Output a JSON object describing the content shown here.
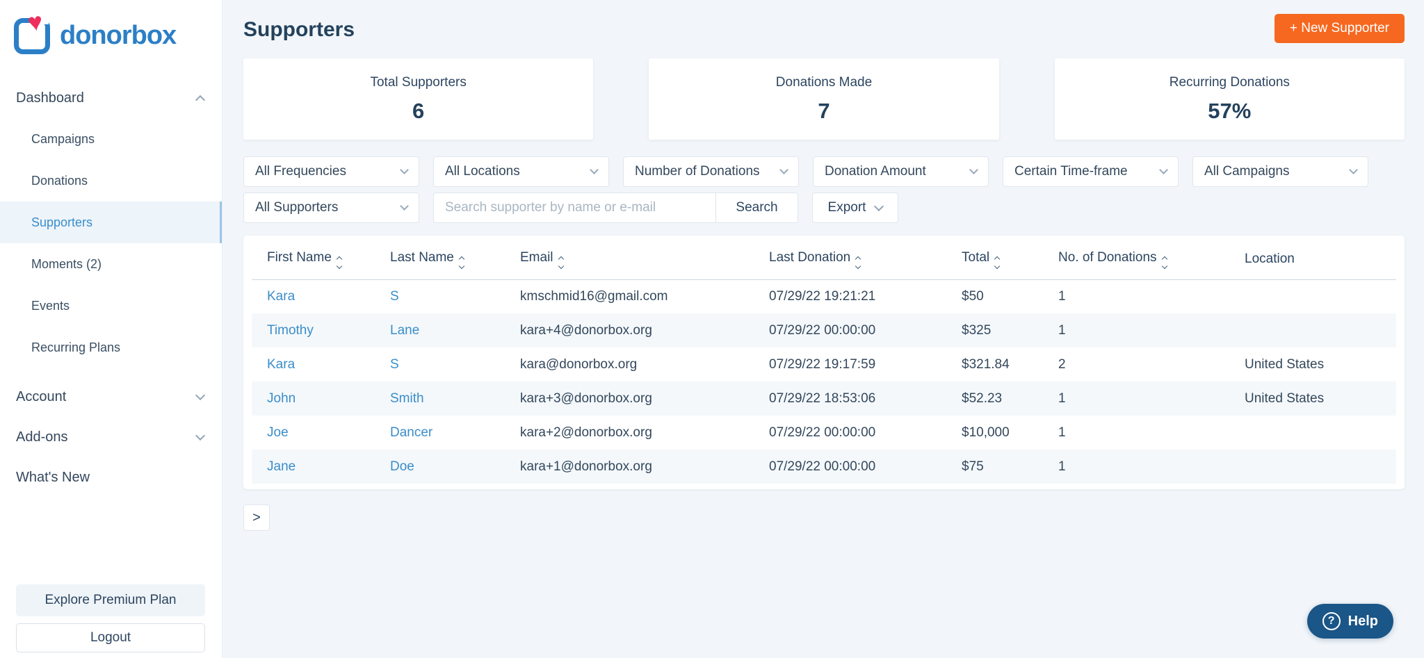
{
  "brand": {
    "name": "donorbox"
  },
  "sidebar": {
    "dashboard": "Dashboard",
    "items": [
      {
        "label": "Campaigns"
      },
      {
        "label": "Donations"
      },
      {
        "label": "Supporters"
      },
      {
        "label": "Moments (2)"
      },
      {
        "label": "Events"
      },
      {
        "label": "Recurring Plans"
      }
    ],
    "account": "Account",
    "addons": "Add-ons",
    "whats_new": "What's New",
    "premium_button": "Explore Premium Plan",
    "logout_button": "Logout"
  },
  "header": {
    "title": "Supporters",
    "new_supporter_button": "+ New Supporter"
  },
  "stats": [
    {
      "label": "Total Supporters",
      "value": "6"
    },
    {
      "label": "Donations Made",
      "value": "7"
    },
    {
      "label": "Recurring Donations",
      "value": "57%"
    }
  ],
  "filters": {
    "dropdowns": [
      {
        "label": "All Frequencies"
      },
      {
        "label": "All Locations"
      },
      {
        "label": "Number of Donations"
      },
      {
        "label": "Donation Amount"
      },
      {
        "label": "Certain Time-frame"
      },
      {
        "label": "All Campaigns"
      }
    ],
    "supporter_dropdown": "All Supporters",
    "search_placeholder": "Search supporter by name or e-mail",
    "search_value": "",
    "search_button": "Search",
    "export_button": "Export"
  },
  "table": {
    "columns": [
      {
        "label": "First Name",
        "sortable": true
      },
      {
        "label": "Last Name",
        "sortable": true
      },
      {
        "label": "Email",
        "sortable": true
      },
      {
        "label": "Last Donation",
        "sortable": true
      },
      {
        "label": "Total",
        "sortable": true
      },
      {
        "label": "No. of Donations",
        "sortable": true
      },
      {
        "label": "Location",
        "sortable": false
      }
    ],
    "rows": [
      {
        "first_name": "Kara",
        "last_name": "S",
        "email": "kmschmid16@gmail.com",
        "last_donation": "07/29/22 19:21:21",
        "total": "$50",
        "donations": "1",
        "location": ""
      },
      {
        "first_name": "Timothy",
        "last_name": "Lane",
        "email": "kara+4@donorbox.org",
        "last_donation": "07/29/22 00:00:00",
        "total": "$325",
        "donations": "1",
        "location": ""
      },
      {
        "first_name": "Kara",
        "last_name": "S",
        "email": "kara@donorbox.org",
        "last_donation": "07/29/22 19:17:59",
        "total": "$321.84",
        "donations": "2",
        "location": "United States"
      },
      {
        "first_name": "John",
        "last_name": "Smith",
        "email": "kara+3@donorbox.org",
        "last_donation": "07/29/22 18:53:06",
        "total": "$52.23",
        "donations": "1",
        "location": "United States"
      },
      {
        "first_name": "Joe",
        "last_name": "Dancer",
        "email": "kara+2@donorbox.org",
        "last_donation": "07/29/22 00:00:00",
        "total": "$10,000",
        "donations": "1",
        "location": ""
      },
      {
        "first_name": "Jane",
        "last_name": "Doe",
        "email": "kara+1@donorbox.org",
        "last_donation": "07/29/22 00:00:00",
        "total": "$75",
        "donations": "1",
        "location": ""
      }
    ]
  },
  "pagination": {
    "next_label": ">"
  },
  "help": {
    "label": "Help",
    "icon": "?"
  },
  "colors": {
    "accent_orange": "#f6681f",
    "link_blue": "#3a8dca",
    "navy_text": "#2c4560",
    "help_bg": "#1a5688",
    "row_stripe": "#f4f8fb",
    "page_bg": "#f2f6fa",
    "logo_blue": "#2b7fc6",
    "logo_heart": "#ee2d5d"
  }
}
